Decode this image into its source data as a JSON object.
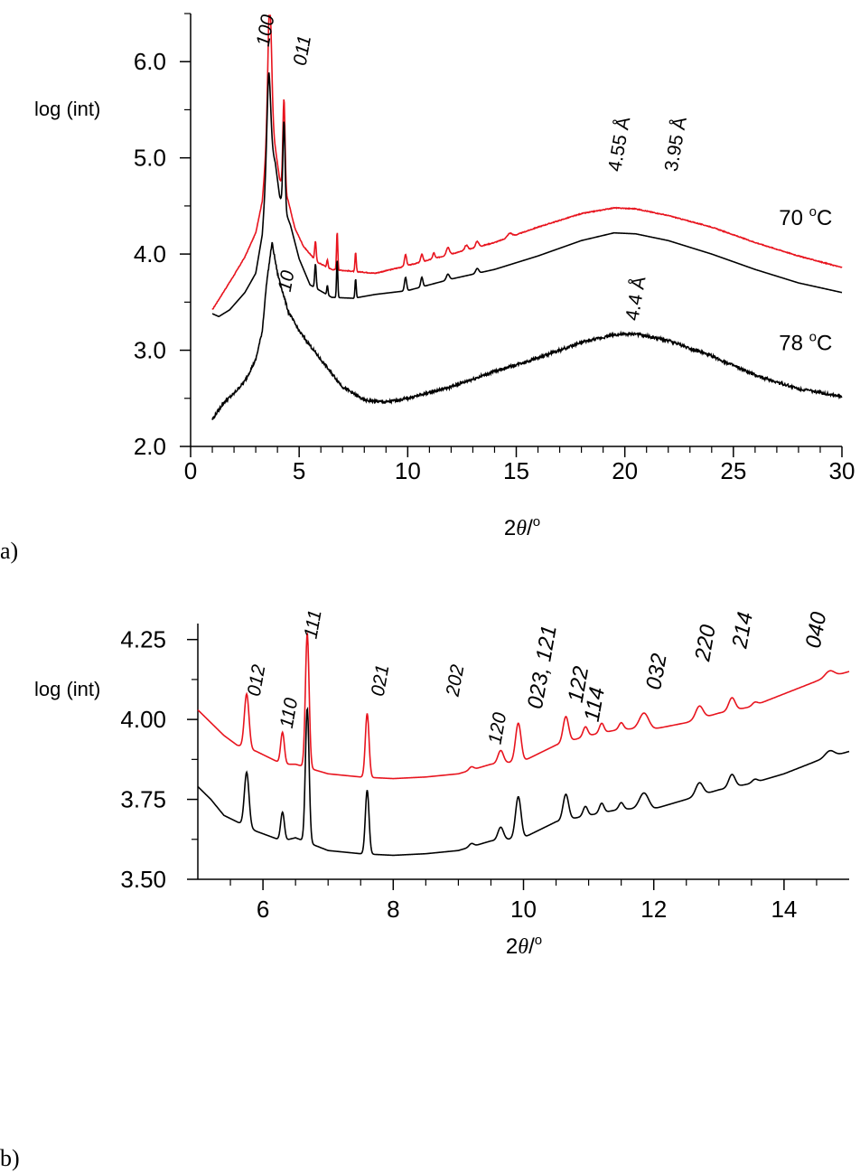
{
  "chart_data": [
    {
      "type": "line",
      "panel_label": "a)",
      "ylabel": "log (int)",
      "xlabel_prefix": "2",
      "xlabel_theta": "θ",
      "xlabel_suffix": "/",
      "xlabel_degree": "o",
      "xlim": [
        0,
        30
      ],
      "ylim": [
        2.0,
        6.5
      ],
      "xticks": [
        0,
        5,
        10,
        15,
        20,
        25,
        30
      ],
      "xtick_labels": [
        "0",
        "5",
        "10",
        "15",
        "20",
        "25",
        "30"
      ],
      "yticks": [
        2.0,
        3.0,
        4.0,
        5.0,
        6.0
      ],
      "ytick_labels": [
        "2.0",
        "3.0",
        "4.0",
        "5.0",
        "6.0"
      ],
      "colors": {
        "red": "#e8141e",
        "black": "#000000"
      },
      "series": [
        {
          "name": "70 °C (red)",
          "color": "#e8141e",
          "baseline": [
            [
              1.0,
              3.42
            ],
            [
              1.5,
              3.6
            ],
            [
              2.0,
              3.78
            ],
            [
              2.5,
              3.97
            ],
            [
              3.0,
              4.22
            ],
            [
              3.3,
              4.55
            ],
            [
              3.6,
              5.4
            ],
            [
              3.9,
              5.1
            ],
            [
              4.1,
              4.78
            ],
            [
              4.5,
              4.55
            ],
            [
              4.8,
              4.27
            ],
            [
              5.2,
              4.08
            ],
            [
              5.8,
              3.92
            ],
            [
              6.5,
              3.84
            ],
            [
              7.5,
              3.82
            ],
            [
              8.5,
              3.8
            ],
            [
              10,
              3.88
            ],
            [
              12,
              4.0
            ],
            [
              14,
              4.12
            ],
            [
              16,
              4.28
            ],
            [
              18,
              4.42
            ],
            [
              19.5,
              4.48
            ],
            [
              20.5,
              4.47
            ],
            [
              22,
              4.4
            ],
            [
              24,
              4.28
            ],
            [
              26,
              4.12
            ],
            [
              28,
              3.98
            ],
            [
              30,
              3.86
            ]
          ],
          "peaks": [
            [
              3.65,
              1.25,
              0.12
            ],
            [
              4.3,
              0.95,
              0.07
            ],
            [
              5.75,
              0.2,
              0.05
            ],
            [
              6.3,
              0.08,
              0.04
            ],
            [
              6.75,
              0.4,
              0.04
            ],
            [
              7.6,
              0.2,
              0.04
            ],
            [
              9.9,
              0.12,
              0.07
            ],
            [
              10.65,
              0.08,
              0.07
            ],
            [
              11.2,
              0.06,
              0.07
            ],
            [
              11.85,
              0.08,
              0.1
            ],
            [
              12.7,
              0.05,
              0.1
            ],
            [
              13.2,
              0.06,
              0.1
            ],
            [
              14.7,
              0.04,
              0.15
            ]
          ]
        },
        {
          "name": "70 °C (black)",
          "color": "#000000",
          "baseline": [
            [
              1.0,
              3.38
            ],
            [
              1.3,
              3.35
            ],
            [
              1.8,
              3.42
            ],
            [
              2.5,
              3.6
            ],
            [
              3.0,
              3.8
            ],
            [
              3.3,
              4.2
            ],
            [
              3.6,
              5.2
            ],
            [
              3.9,
              4.95
            ],
            [
              4.1,
              4.6
            ],
            [
              4.6,
              4.3
            ],
            [
              5.0,
              3.95
            ],
            [
              5.5,
              3.68
            ],
            [
              6.5,
              3.55
            ],
            [
              7.5,
              3.54
            ],
            [
              8.5,
              3.58
            ],
            [
              10,
              3.62
            ],
            [
              12,
              3.74
            ],
            [
              14,
              3.84
            ],
            [
              16,
              3.98
            ],
            [
              18,
              4.14
            ],
            [
              19.5,
              4.22
            ],
            [
              20.5,
              4.21
            ],
            [
              22,
              4.14
            ],
            [
              24,
              4.0
            ],
            [
              26,
              3.84
            ],
            [
              28,
              3.7
            ],
            [
              30,
              3.6
            ]
          ],
          "peaks": [
            [
              3.6,
              0.7,
              0.12
            ],
            [
              4.3,
              0.9,
              0.07
            ],
            [
              5.75,
              0.25,
              0.05
            ],
            [
              6.3,
              0.1,
              0.04
            ],
            [
              6.75,
              0.4,
              0.04
            ],
            [
              7.6,
              0.2,
              0.04
            ],
            [
              9.9,
              0.14,
              0.07
            ],
            [
              10.65,
              0.1,
              0.07
            ],
            [
              11.85,
              0.06,
              0.1
            ],
            [
              13.2,
              0.05,
              0.1
            ]
          ]
        },
        {
          "name": "78 °C",
          "color": "#000000",
          "baseline": [
            [
              1.0,
              2.28
            ],
            [
              1.5,
              2.45
            ],
            [
              2.0,
              2.55
            ],
            [
              2.5,
              2.68
            ],
            [
              3.0,
              2.9
            ],
            [
              3.3,
              3.2
            ],
            [
              3.5,
              3.7
            ],
            [
              3.75,
              4.12
            ],
            [
              4.0,
              3.8
            ],
            [
              4.5,
              3.4
            ],
            [
              5,
              3.2
            ],
            [
              6,
              2.9
            ],
            [
              7,
              2.62
            ],
            [
              8,
              2.48
            ],
            [
              9,
              2.46
            ],
            [
              10,
              2.5
            ],
            [
              12,
              2.62
            ],
            [
              14,
              2.78
            ],
            [
              16,
              2.92
            ],
            [
              18,
              3.08
            ],
            [
              19.5,
              3.16
            ],
            [
              20.5,
              3.17
            ],
            [
              22,
              3.1
            ],
            [
              24,
              2.94
            ],
            [
              26,
              2.74
            ],
            [
              28,
              2.6
            ],
            [
              30,
              2.52
            ]
          ],
          "peaks": []
        }
      ],
      "annotations": [
        {
          "text": "100",
          "x": 3.6,
          "y": 6.15,
          "italic": true
        },
        {
          "text": "011",
          "x": 5.3,
          "y": 5.95,
          "italic": true
        },
        {
          "text": "10",
          "x": 4.6,
          "y": 3.6,
          "italic": true
        },
        {
          "text": "4.55 Å",
          "x": 19.8,
          "y": 4.85,
          "italic": false
        },
        {
          "text": "3.95 Å",
          "x": 22.4,
          "y": 4.85,
          "italic": false
        },
        {
          "text": "4.4 Å",
          "x": 20.6,
          "y": 3.3,
          "italic": false
        }
      ],
      "temperature_labels": [
        {
          "number": "70 ",
          "superscript": "o",
          "unit": "C",
          "x": 27.1,
          "y": 4.3
        },
        {
          "number": "78 ",
          "superscript": "o",
          "unit": "C",
          "x": 27.1,
          "y": 3.0
        }
      ]
    },
    {
      "type": "line",
      "panel_label": "b)",
      "ylabel": "log (int)",
      "xlabel_prefix": "2",
      "xlabel_theta": "θ",
      "xlabel_suffix": "/",
      "xlabel_degree": "o",
      "xlim": [
        5,
        15
      ],
      "ylim": [
        3.5,
        4.3
      ],
      "xticks": [
        6,
        8,
        10,
        12,
        14
      ],
      "xtick_labels": [
        "6",
        "8",
        "10",
        "12",
        "14"
      ],
      "yticks": [
        3.5,
        3.75,
        4.0,
        4.25
      ],
      "ytick_labels": [
        "3.50",
        "3.75",
        "4.00",
        "4.25"
      ],
      "series": [
        {
          "name": "red",
          "color": "#e8141e",
          "baseline": [
            [
              5.0,
              4.03
            ],
            [
              5.2,
              3.99
            ],
            [
              5.4,
              3.95
            ],
            [
              5.6,
              3.92
            ],
            [
              5.9,
              3.9
            ],
            [
              6.3,
              3.86
            ],
            [
              6.5,
              3.86
            ],
            [
              7.0,
              3.83
            ],
            [
              7.5,
              3.82
            ],
            [
              8,
              3.815
            ],
            [
              8.5,
              3.82
            ],
            [
              9,
              3.83
            ],
            [
              9.5,
              3.86
            ],
            [
              10,
              3.87
            ],
            [
              10.5,
              3.92
            ],
            [
              11,
              3.95
            ],
            [
              11.5,
              3.97
            ],
            [
              12,
              3.97
            ],
            [
              12.5,
              3.99
            ],
            [
              13,
              4.02
            ],
            [
              13.5,
              4.04
            ],
            [
              14,
              4.08
            ],
            [
              14.5,
              4.12
            ],
            [
              15,
              4.15
            ]
          ],
          "peaks": [
            [
              5.75,
              0.17,
              0.05
            ],
            [
              6.3,
              0.1,
              0.04
            ],
            [
              6.68,
              0.42,
              0.04
            ],
            [
              7.6,
              0.2,
              0.04
            ],
            [
              9.2,
              0.01,
              0.05
            ],
            [
              9.65,
              0.04,
              0.06
            ],
            [
              9.92,
              0.12,
              0.06
            ],
            [
              10.65,
              0.08,
              0.06
            ],
            [
              10.95,
              0.03,
              0.05
            ],
            [
              11.2,
              0.03,
              0.05
            ],
            [
              11.5,
              0.02,
              0.05
            ],
            [
              11.85,
              0.05,
              0.1
            ],
            [
              12.7,
              0.04,
              0.08
            ],
            [
              13.2,
              0.04,
              0.07
            ],
            [
              13.55,
              0.01,
              0.06
            ],
            [
              14.7,
              0.02,
              0.1
            ]
          ]
        },
        {
          "name": "black",
          "color": "#000000",
          "baseline": [
            [
              5.0,
              3.79
            ],
            [
              5.2,
              3.75
            ],
            [
              5.4,
              3.7
            ],
            [
              5.6,
              3.68
            ],
            [
              5.9,
              3.65
            ],
            [
              6.3,
              3.62
            ],
            [
              6.5,
              3.63
            ],
            [
              7.0,
              3.59
            ],
            [
              7.5,
              3.58
            ],
            [
              8,
              3.575
            ],
            [
              8.5,
              3.58
            ],
            [
              9,
              3.59
            ],
            [
              9.5,
              3.62
            ],
            [
              10,
              3.63
            ],
            [
              10.5,
              3.68
            ],
            [
              11,
              3.7
            ],
            [
              11.5,
              3.72
            ],
            [
              12,
              3.72
            ],
            [
              12.5,
              3.75
            ],
            [
              13,
              3.78
            ],
            [
              13.5,
              3.8
            ],
            [
              14,
              3.83
            ],
            [
              14.5,
              3.87
            ],
            [
              15,
              3.9
            ]
          ],
          "peaks": [
            [
              5.75,
              0.17,
              0.05
            ],
            [
              6.3,
              0.09,
              0.04
            ],
            [
              6.68,
              0.42,
              0.04
            ],
            [
              7.6,
              0.2,
              0.04
            ],
            [
              9.2,
              0.01,
              0.05
            ],
            [
              9.65,
              0.04,
              0.06
            ],
            [
              9.92,
              0.13,
              0.06
            ],
            [
              10.65,
              0.08,
              0.06
            ],
            [
              10.95,
              0.03,
              0.05
            ],
            [
              11.2,
              0.03,
              0.05
            ],
            [
              11.5,
              0.02,
              0.05
            ],
            [
              11.85,
              0.05,
              0.1
            ],
            [
              12.7,
              0.04,
              0.08
            ],
            [
              13.2,
              0.04,
              0.07
            ],
            [
              13.55,
              0.01,
              0.06
            ],
            [
              14.7,
              0.02,
              0.1
            ]
          ]
        }
      ],
      "annotations": [
        {
          "text": "111",
          "x": 6.82,
          "y": 4.25,
          "size": "small"
        },
        {
          "text": "012",
          "x": 5.95,
          "y": 4.07,
          "size": "small"
        },
        {
          "text": "110",
          "x": 6.45,
          "y": 3.97,
          "size": "small"
        },
        {
          "text": "021",
          "x": 7.85,
          "y": 4.07,
          "size": "small"
        },
        {
          "text": "202",
          "x": 9.0,
          "y": 4.07,
          "size": "small"
        },
        {
          "text": "120",
          "x": 9.65,
          "y": 3.92,
          "size": "small"
        },
        {
          "text": "023, 121",
          "x": 10.28,
          "y": 4.03,
          "size": "large"
        },
        {
          "text": "122",
          "x": 10.9,
          "y": 4.05,
          "size": "large"
        },
        {
          "text": "114",
          "x": 11.15,
          "y": 3.99,
          "size": "large"
        },
        {
          "text": "032",
          "x": 12.1,
          "y": 4.09,
          "size": "large"
        },
        {
          "text": "220",
          "x": 12.85,
          "y": 4.18,
          "size": "large"
        },
        {
          "text": "214",
          "x": 13.42,
          "y": 4.22,
          "size": "large"
        },
        {
          "text": "040",
          "x": 14.55,
          "y": 4.22,
          "size": "large"
        }
      ]
    }
  ]
}
